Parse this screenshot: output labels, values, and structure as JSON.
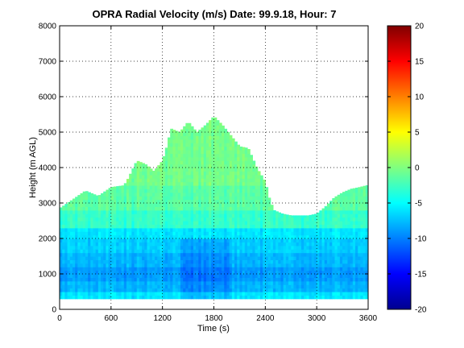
{
  "chart_data": {
    "type": "heatmap",
    "title": "OPRA Radial Velocity (m/s)  Date: 99.9.18, Hour: 7",
    "xlabel": "Time (s)",
    "ylabel": "Height (m AGL)",
    "xlim": [
      0,
      3600
    ],
    "ylim": [
      0,
      8000
    ],
    "x_ticks": [
      0,
      600,
      1200,
      1800,
      2400,
      3000,
      3600
    ],
    "y_ticks": [
      0,
      1000,
      2000,
      3000,
      4000,
      5000,
      6000,
      7000,
      8000
    ],
    "grid": true,
    "colorbar": {
      "range": [
        -20,
        20
      ],
      "ticks": [
        -20,
        -15,
        -10,
        -5,
        0,
        5,
        10,
        15,
        20
      ],
      "colormap": "jet"
    },
    "data_range_height": [
      300,
      5500
    ],
    "echo_top": {
      "x": [
        0,
        150,
        300,
        450,
        600,
        750,
        800,
        900,
        1000,
        1100,
        1200,
        1250,
        1300,
        1400,
        1500,
        1600,
        1700,
        1800,
        1900,
        2000,
        2100,
        2200,
        2300,
        2400,
        2450,
        2500,
        2600,
        2700,
        2800,
        2900,
        3000,
        3100,
        3200,
        3300,
        3400,
        3500,
        3580
      ],
      "y": [
        2850,
        3100,
        3350,
        3200,
        3450,
        3500,
        3700,
        4200,
        4100,
        3900,
        4200,
        4600,
        5100,
        5000,
        5300,
        5000,
        5200,
        5450,
        5200,
        4900,
        4600,
        4550,
        4000,
        3600,
        3100,
        2800,
        2700,
        2650,
        2650,
        2650,
        2700,
        2900,
        3150,
        3300,
        3400,
        3450,
        3500
      ]
    },
    "velocity_layers": [
      {
        "height": [
          300,
          500
        ],
        "velocity": -6
      },
      {
        "height": [
          500,
          800
        ],
        "velocity": -8
      },
      {
        "height": [
          800,
          1200
        ],
        "velocity": -9
      },
      {
        "height": [
          1200,
          1600
        ],
        "velocity": -8
      },
      {
        "height": [
          1600,
          2000
        ],
        "velocity": -7
      },
      {
        "height": [
          2000,
          2300
        ],
        "velocity": -6
      },
      {
        "height": [
          2300,
          2800
        ],
        "velocity": -3
      },
      {
        "height": [
          2800,
          3500
        ],
        "velocity": -1.5
      },
      {
        "height": [
          3500,
          5500
        ],
        "velocity": -0.5
      }
    ],
    "colors": {
      "background": "#ffffff",
      "axes": "#000000",
      "grid": "#000000"
    }
  }
}
